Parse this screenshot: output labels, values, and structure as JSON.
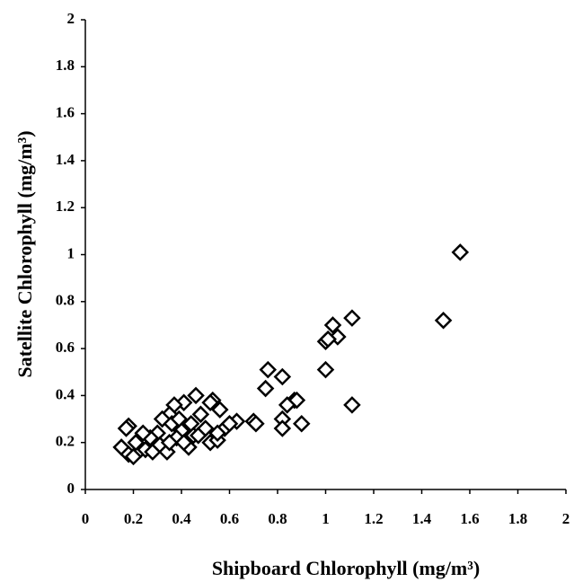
{
  "chart_data": {
    "type": "scatter",
    "xlabel": "Shipboard Chlorophyll (mg/m³)",
    "ylabel": "Satellite Chlorophyll (mg/m³)",
    "xlim": [
      0,
      2
    ],
    "ylim": [
      0,
      2
    ],
    "xticks": [
      0,
      0.2,
      0.4,
      0.6,
      0.8,
      1,
      1.2,
      1.4,
      1.6,
      1.8,
      2
    ],
    "yticks": [
      0,
      0.2,
      0.4,
      0.6,
      0.8,
      1,
      1.2,
      1.4,
      1.6,
      1.8,
      2
    ],
    "color": "#000000",
    "x": [
      1.56,
      1.49,
      1.11,
      1.03,
      1.05,
      1.0,
      1.01,
      1.0,
      1.11,
      0.76,
      0.82,
      0.75,
      0.87,
      0.88,
      0.84,
      0.82,
      0.9,
      0.82,
      0.7,
      0.71,
      0.63,
      0.58,
      0.56,
      0.53,
      0.52,
      0.46,
      0.41,
      0.37,
      0.35,
      0.32,
      0.48,
      0.44,
      0.4,
      0.38,
      0.36,
      0.3,
      0.27,
      0.24,
      0.23,
      0.21,
      0.18,
      0.17,
      0.15,
      0.18,
      0.2,
      0.25,
      0.28,
      0.31,
      0.34,
      0.35,
      0.43,
      0.45,
      0.47,
      0.5,
      0.52,
      0.55,
      0.55,
      0.41,
      0.39,
      0.6
    ],
    "values": [
      1.01,
      0.72,
      0.73,
      0.7,
      0.65,
      0.63,
      0.64,
      0.51,
      0.36,
      0.51,
      0.48,
      0.43,
      0.38,
      0.38,
      0.36,
      0.3,
      0.28,
      0.26,
      0.29,
      0.28,
      0.29,
      0.26,
      0.34,
      0.38,
      0.37,
      0.4,
      0.37,
      0.36,
      0.32,
      0.3,
      0.32,
      0.28,
      0.25,
      0.22,
      0.28,
      0.24,
      0.22,
      0.24,
      0.17,
      0.2,
      0.27,
      0.26,
      0.18,
      0.15,
      0.14,
      0.17,
      0.16,
      0.19,
      0.16,
      0.2,
      0.18,
      0.23,
      0.23,
      0.26,
      0.2,
      0.21,
      0.24,
      0.2,
      0.3,
      0.28
    ]
  }
}
